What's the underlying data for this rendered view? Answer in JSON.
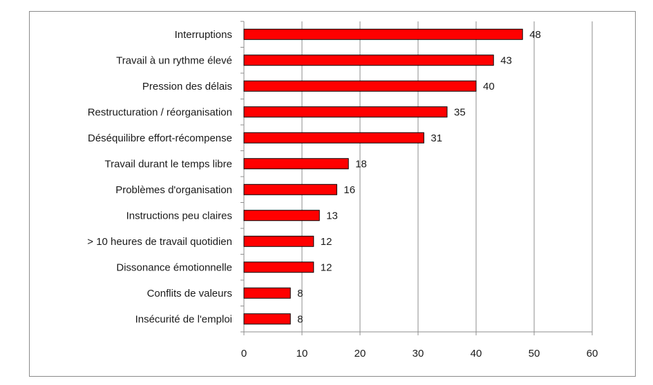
{
  "chart_data": {
    "type": "bar",
    "orientation": "horizontal",
    "categories": [
      "Interruptions",
      "Travail à un rythme élevé",
      "Pression des délais",
      "Restructuration / réorganisation",
      "Déséquilibre effort-récompense",
      "Travail durant le temps libre",
      "Problèmes d'organisation",
      "Instructions peu claires",
      "> 10 heures de travail quotidien",
      "Dissonance émotionnelle",
      "Conflits de valeurs",
      "Insécurité de l'emploi"
    ],
    "values": [
      48,
      43,
      40,
      35,
      31,
      18,
      16,
      13,
      12,
      12,
      8,
      8
    ],
    "xlim": [
      0,
      60
    ],
    "xticks": [
      0,
      10,
      20,
      30,
      40,
      50,
      60
    ],
    "grid": true,
    "data_labels": true,
    "legend": "none",
    "bar_color": "#ff0000",
    "bar_edge_color": "#000000"
  }
}
